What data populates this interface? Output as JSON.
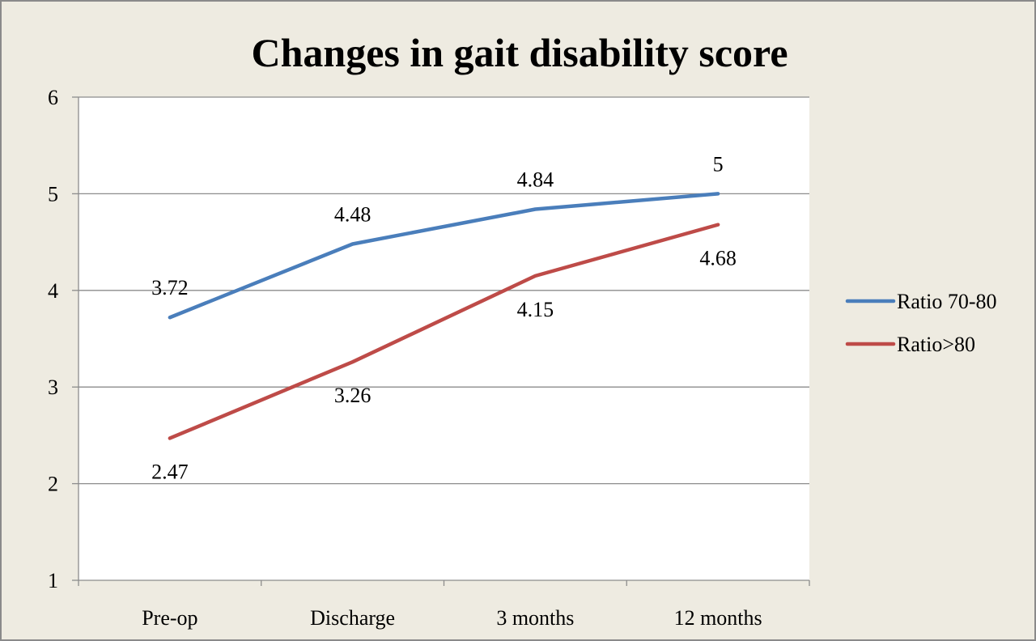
{
  "chart_data": {
    "type": "line",
    "title": "Changes in gait disability score",
    "categories": [
      "Pre-op",
      "Discharge",
      "3 months",
      "12 months"
    ],
    "ylim": [
      1,
      6
    ],
    "yticks": [
      1,
      2,
      3,
      4,
      5,
      6
    ],
    "grid": true,
    "legend_position": "right",
    "series": [
      {
        "name": "Ratio 70-80",
        "color": "#4a7ebb",
        "values": [
          3.72,
          4.48,
          4.84,
          5
        ],
        "labels": [
          "3.72",
          "4.48",
          "4.84",
          "5"
        ],
        "label_side": "above"
      },
      {
        "name": "Ratio>80",
        "color": "#be4b48",
        "values": [
          2.47,
          3.26,
          4.15,
          4.68
        ],
        "labels": [
          "2.47",
          "3.26",
          "4.15",
          "4.68"
        ],
        "label_side": "below"
      }
    ]
  }
}
